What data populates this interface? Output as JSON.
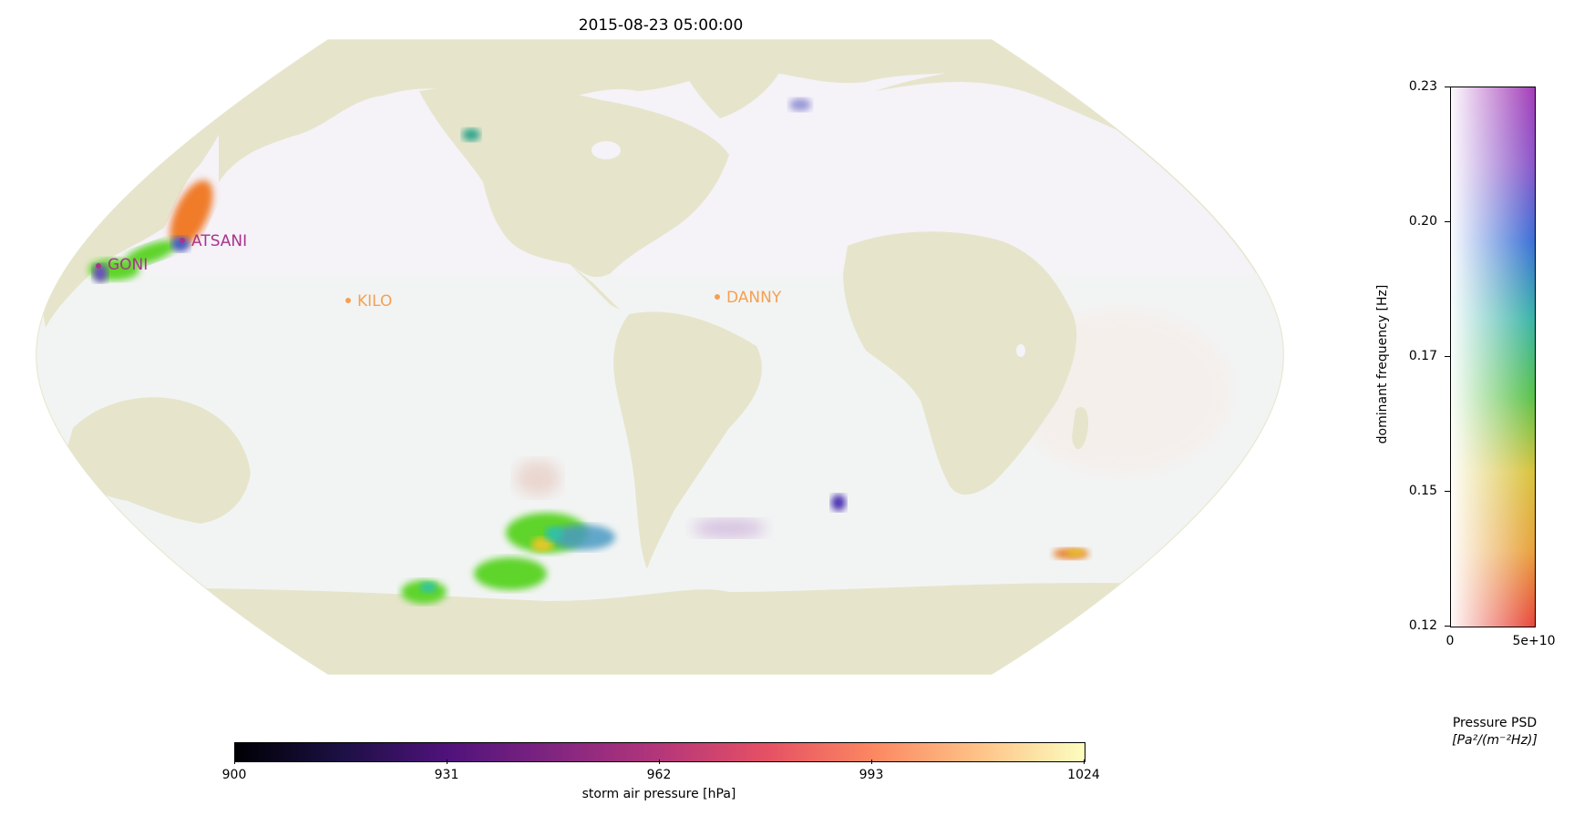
{
  "title": "2015-08-23 05:00:00",
  "storms": [
    {
      "name": "GONI",
      "color": "#a8348c"
    },
    {
      "name": "ATSANI",
      "color": "#a8348c"
    },
    {
      "name": "KILO",
      "color": "#f5a050"
    },
    {
      "name": "DANNY",
      "color": "#f5a050"
    }
  ],
  "colors": {
    "land": "#e6e5cc",
    "ocean": "#f5f2f8",
    "coast_line": "#e6e5cc"
  },
  "pressure_colorbar": {
    "label": "storm air pressure [hPa]",
    "colormap": "magma",
    "ticks": [
      "900",
      "931",
      "962",
      "993",
      "1024"
    ],
    "range": [
      900,
      1024
    ]
  },
  "frequency_colorbar": {
    "ylabel": "dominant frequency [Hz]",
    "ticks": [
      "0.23",
      "0.20",
      "0.17",
      "0.15",
      "0.12"
    ],
    "x_ticks": [
      "0",
      "5e+10"
    ],
    "label_line1": "Pressure PSD",
    "label_line2": "[Pa²/(m⁻²Hz)]"
  }
}
